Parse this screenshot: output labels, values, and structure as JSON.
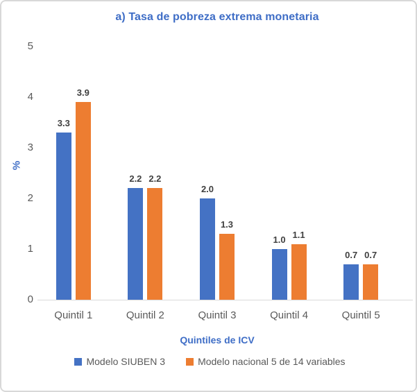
{
  "panel": {
    "background": "#ffffff",
    "border_color": "#d8d8d8"
  },
  "chart_data": {
    "type": "bar",
    "title": "a) Tasa de pobreza extrema monetaria",
    "xlabel": "Quintiles de ICV",
    "ylabel": "%",
    "categories": [
      "Quintil 1",
      "Quintil 2",
      "Quintil 3",
      "Quintil 4",
      "Quintil 5"
    ],
    "series": [
      {
        "name": "Modelo SIUBEN 3",
        "color": "#4472c4",
        "values": [
          3.3,
          2.2,
          2.0,
          1.0,
          0.7
        ],
        "labels": [
          "3.3",
          "2.2",
          "2.0",
          "1.0",
          "0.7"
        ]
      },
      {
        "name": "Modelo nacional 5 de 14 variables",
        "color": "#ed7d31",
        "values": [
          3.9,
          2.2,
          1.3,
          1.1,
          0.7
        ],
        "labels": [
          "3.9",
          "2.2",
          "1.3",
          "1.1",
          "0.7"
        ]
      }
    ],
    "ylim": [
      0,
      5
    ],
    "yticks": [
      "0",
      "1",
      "2",
      "3",
      "4",
      "5"
    ],
    "grid": false,
    "legend_position": "bottom",
    "colors": {
      "title": "#3e6dc6",
      "axis_title": "#3e6dc6",
      "tick_label": "#595959",
      "value_label": "#3f3f3f",
      "legend_text": "#595959",
      "baseline": "#d9d9d9"
    }
  }
}
